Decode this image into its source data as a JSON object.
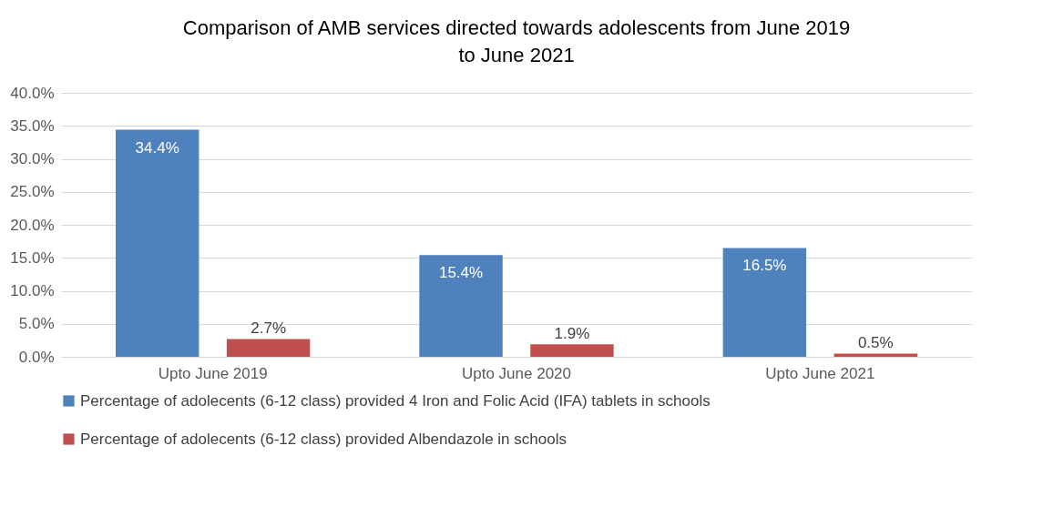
{
  "chart_data": {
    "type": "bar",
    "title": "Comparison of  AMB services directed towards adolescents from June 2019 to June 2021",
    "categories": [
      "Upto June 2019",
      "Upto June 2020",
      "Upto June 2021"
    ],
    "series": [
      {
        "name": "Percentage of adolecents (6-12 class) provided 4 Iron and Folic Acid (IFA) tablets in schools",
        "color": "#4f81bd",
        "values": [
          34.4,
          15.4,
          16.5
        ],
        "value_labels": [
          "34.4%",
          "15.4%",
          "16.5%"
        ]
      },
      {
        "name": "Percentage of adolecents (6-12 class) provided Albendazole in schools",
        "color": "#c0504d",
        "values": [
          2.7,
          1.9,
          0.5
        ],
        "value_labels": [
          "2.7%",
          "1.9%",
          "0.5%"
        ]
      }
    ],
    "ylim": [
      0,
      40
    ],
    "yticks": [
      {
        "value": 0,
        "label": "0.0%"
      },
      {
        "value": 5,
        "label": "5.0%"
      },
      {
        "value": 10,
        "label": "10.0%"
      },
      {
        "value": 15,
        "label": "15.0%"
      },
      {
        "value": 20,
        "label": "20.0%"
      },
      {
        "value": 25,
        "label": "25.0%"
      },
      {
        "value": 30,
        "label": "30.0%"
      },
      {
        "value": 35,
        "label": "35.0%"
      },
      {
        "value": 40,
        "label": "40.0%"
      }
    ],
    "grid": "y",
    "legend": "bottom"
  }
}
